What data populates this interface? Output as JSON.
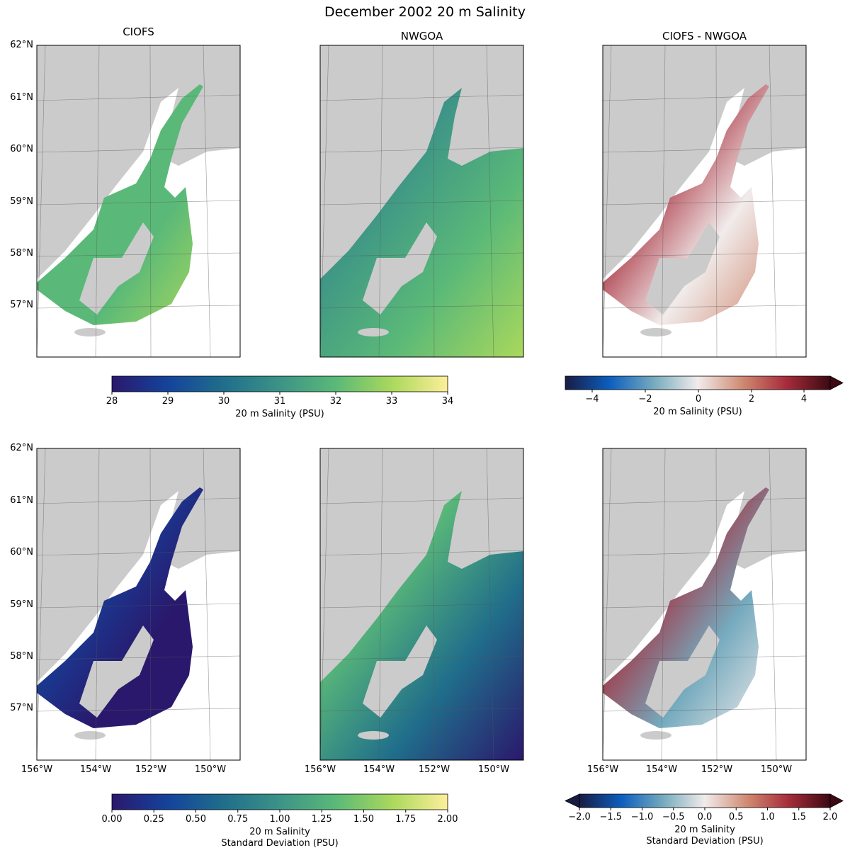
{
  "title": "December 2002 20 m Salinity",
  "panels": {
    "columns": [
      "CIOFS",
      "NWGOA",
      "CIOFS - NWGOA"
    ],
    "lat_ticks": [
      "62°N",
      "61°N",
      "60°N",
      "59°N",
      "58°N",
      "57°N"
    ],
    "lon_ticks": [
      "156°W",
      "154°W",
      "152°W",
      "150°W"
    ],
    "land_color": "#cbcbcb"
  },
  "colorbars": {
    "salinity": {
      "label": "20 m Salinity (PSU)",
      "ticks": [
        "28",
        "29",
        "30",
        "31",
        "32",
        "33",
        "34"
      ],
      "range": [
        28,
        34
      ],
      "colormap": "haline"
    },
    "salinity_diff": {
      "label": "20 m Salinity (PSU)",
      "ticks": [
        "−4",
        "−2",
        "0",
        "2",
        "4"
      ],
      "range": [
        -5,
        5
      ],
      "colormap": "balance",
      "extend": "max"
    },
    "std": {
      "label_line1": "20 m Salinity",
      "label_line2": "Standard Deviation (PSU)",
      "ticks": [
        "0.00",
        "0.25",
        "0.50",
        "0.75",
        "1.00",
        "1.25",
        "1.50",
        "1.75",
        "2.00"
      ],
      "range": [
        0,
        2
      ],
      "colormap": "haline"
    },
    "std_diff": {
      "label_line1": "20 m Salinity",
      "label_line2": "Standard Deviation (PSU)",
      "ticks": [
        "−2.0",
        "−1.5",
        "−1.0",
        "−0.5",
        "0.0",
        "0.5",
        "1.0",
        "1.5",
        "2.0"
      ],
      "range": [
        -2,
        2
      ],
      "colormap": "balance",
      "extend": "both"
    }
  }
}
